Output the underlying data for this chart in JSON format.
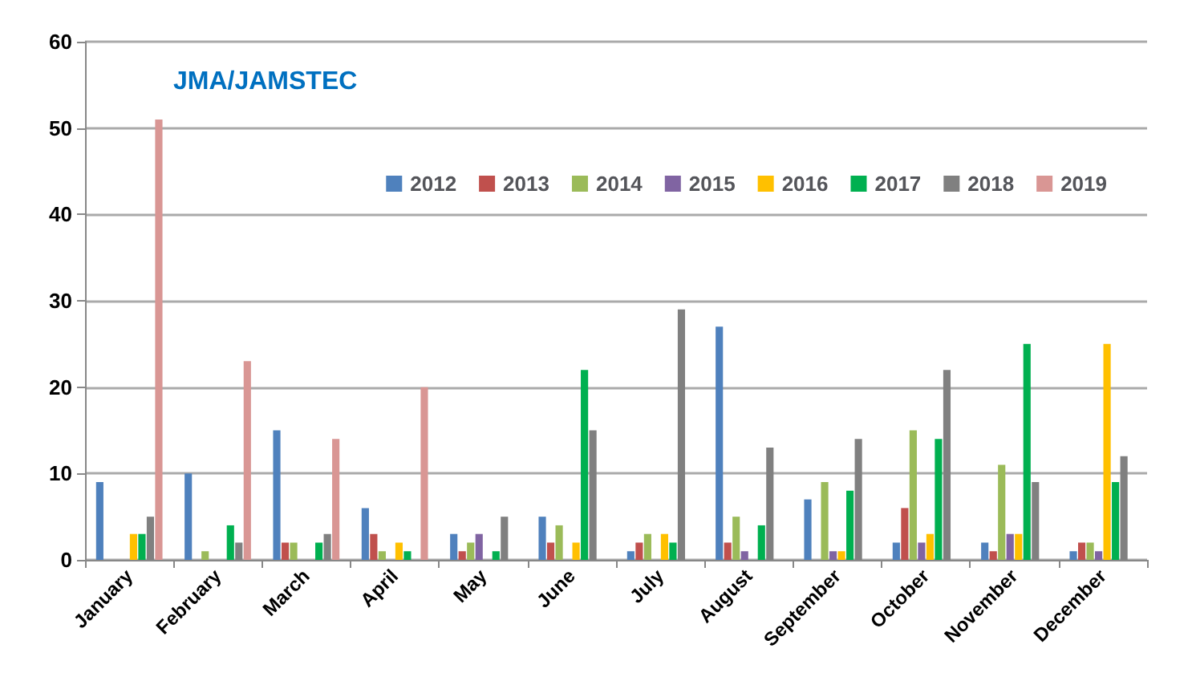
{
  "chart_data": {
    "type": "bar",
    "title": "JMA/JAMSTEC",
    "categories": [
      "January",
      "February",
      "March",
      "April",
      "May",
      "June",
      "July",
      "August",
      "September",
      "October",
      "November",
      "December"
    ],
    "series": [
      {
        "name": "2012",
        "color": "#4f81bd",
        "values": [
          9,
          10,
          15,
          6,
          3,
          5,
          1,
          27,
          7,
          2,
          2,
          1
        ]
      },
      {
        "name": "2013",
        "color": "#c0504d",
        "values": [
          0,
          0,
          2,
          3,
          1,
          2,
          2,
          2,
          0,
          6,
          1,
          2
        ]
      },
      {
        "name": "2014",
        "color": "#9bbb59",
        "values": [
          0,
          1,
          2,
          1,
          2,
          4,
          3,
          5,
          9,
          15,
          11,
          2
        ]
      },
      {
        "name": "2015",
        "color": "#8064a2",
        "values": [
          0,
          0,
          0,
          0,
          3,
          0,
          0,
          1,
          1,
          2,
          3,
          1
        ]
      },
      {
        "name": "2016",
        "color": "#ffc000",
        "values": [
          3,
          0,
          0,
          2,
          0,
          2,
          3,
          0,
          1,
          3,
          3,
          25
        ]
      },
      {
        "name": "2017",
        "color": "#00b050",
        "values": [
          3,
          4,
          2,
          1,
          1,
          22,
          2,
          4,
          8,
          14,
          25,
          9
        ]
      },
      {
        "name": "2018",
        "color": "#808080",
        "values": [
          5,
          2,
          3,
          0,
          5,
          15,
          29,
          13,
          14,
          22,
          9,
          12
        ]
      },
      {
        "name": "2019",
        "color": "#d99694",
        "values": [
          51,
          23,
          14,
          20,
          null,
          null,
          null,
          null,
          null,
          null,
          null,
          null
        ]
      }
    ],
    "ylim": [
      0,
      60
    ],
    "yticks": [
      0,
      10,
      20,
      30,
      40,
      50,
      60
    ],
    "grid": "y",
    "legend": "top right"
  }
}
